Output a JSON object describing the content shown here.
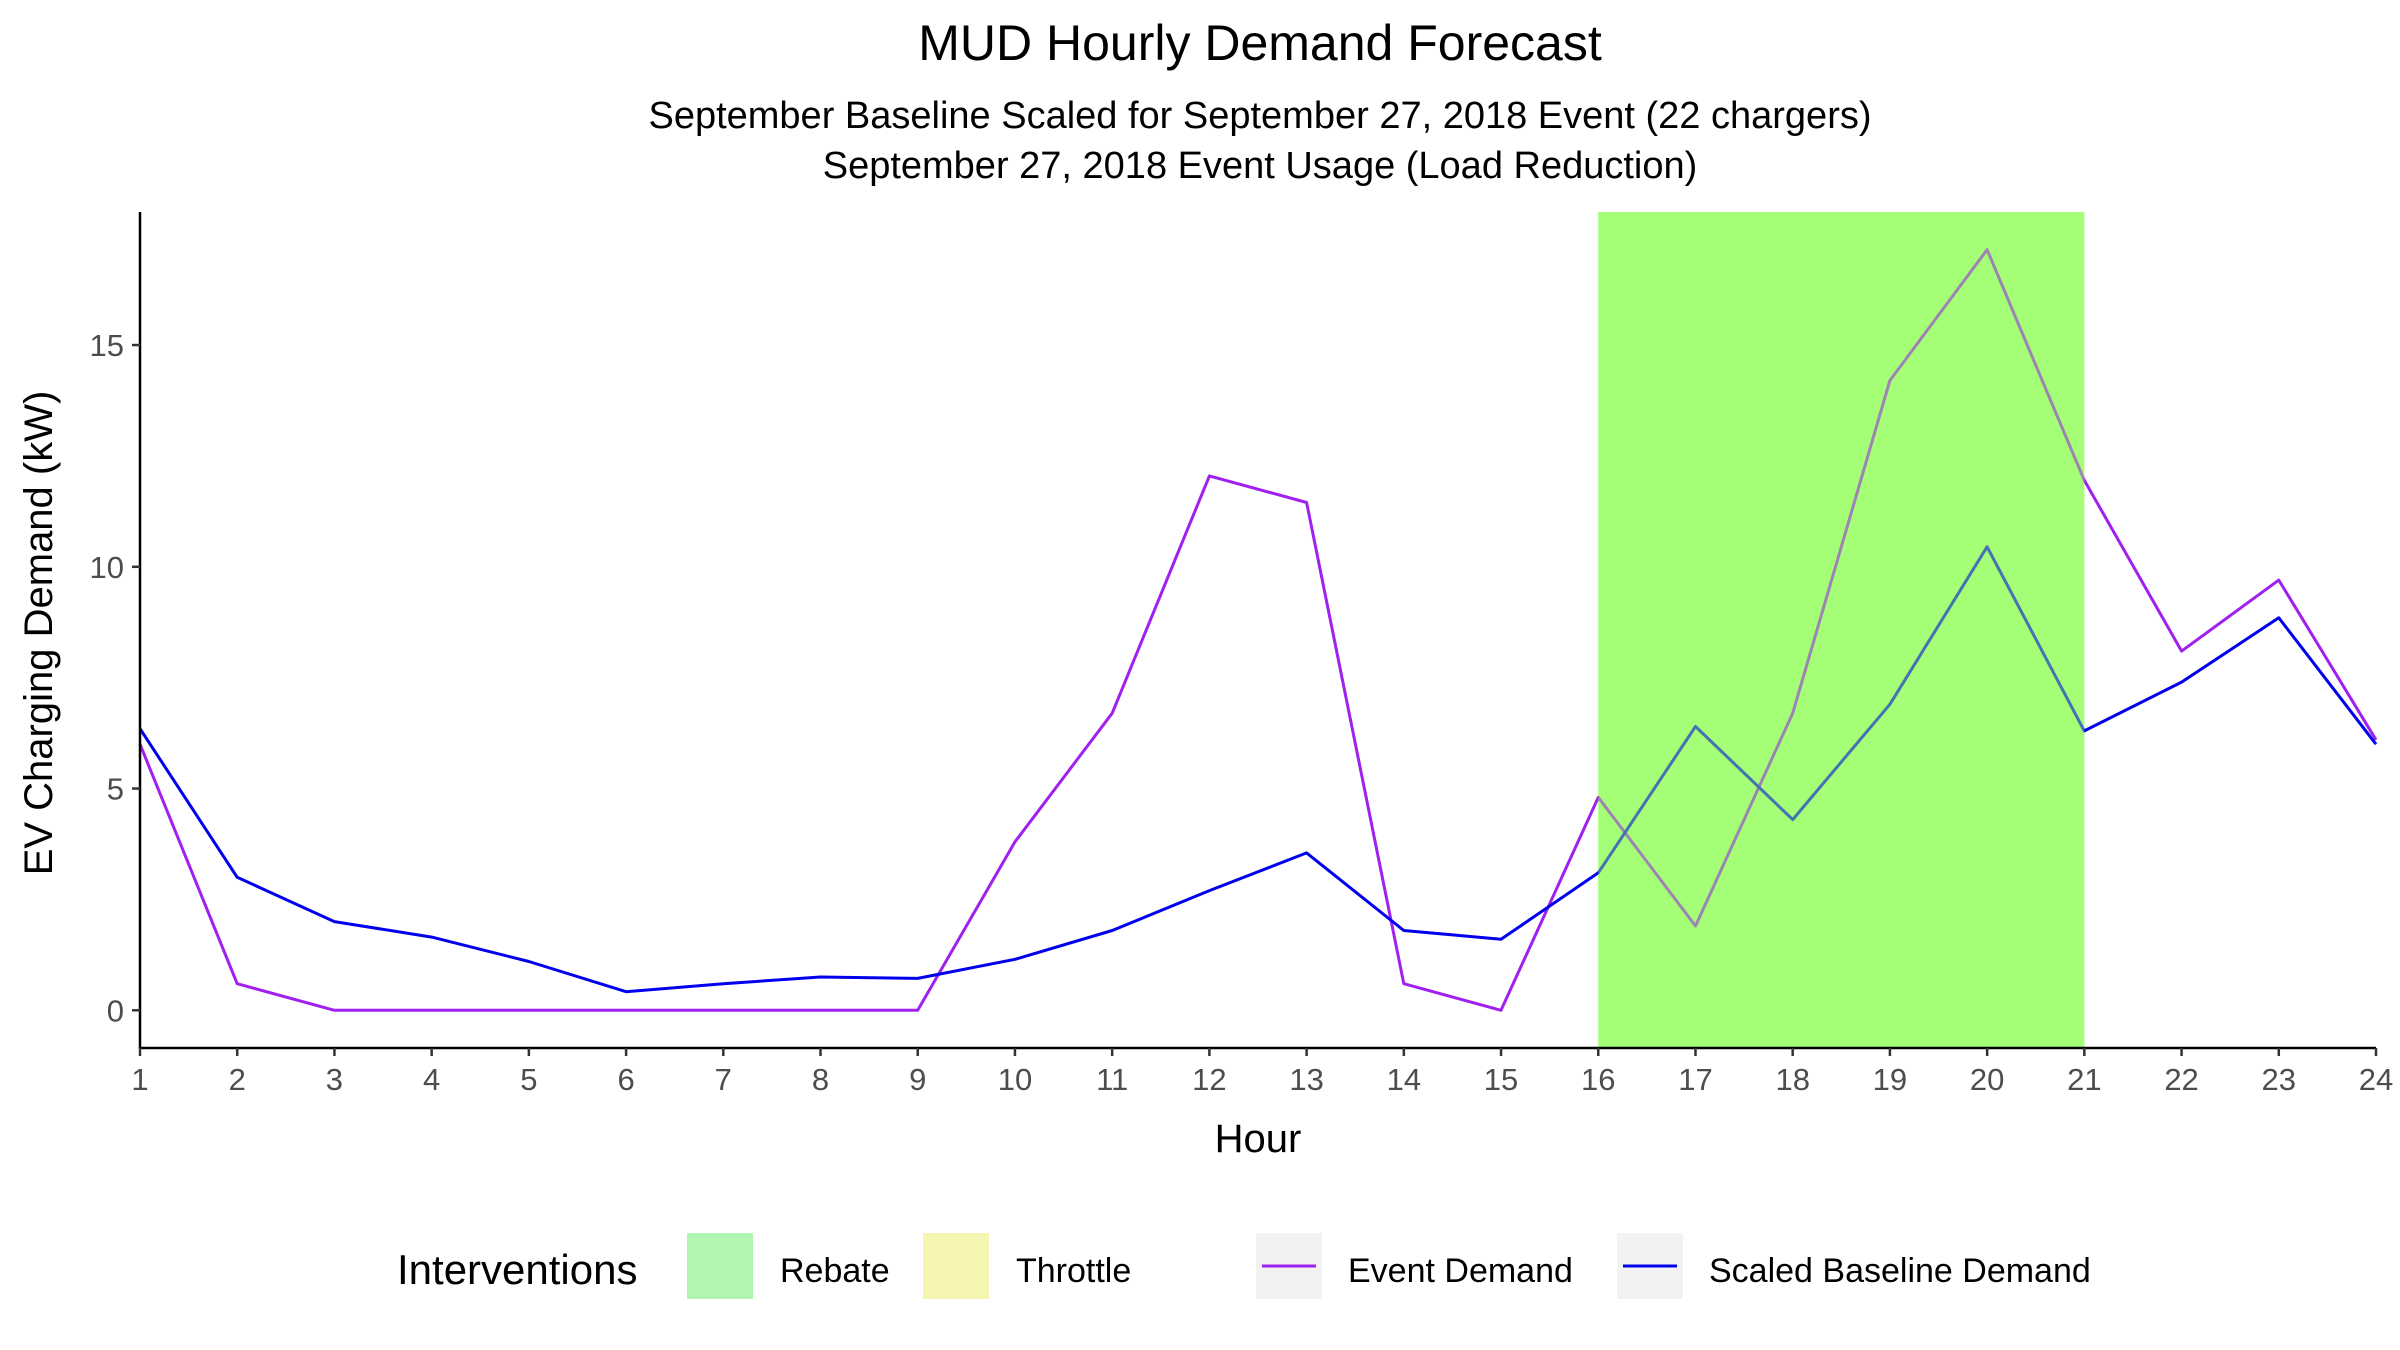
{
  "chart_data": {
    "type": "line",
    "title": "MUD Hourly Demand Forecast",
    "subtitle_lines": [
      "September Baseline Scaled for September 27, 2018 Event (22 chargers)",
      "September 27, 2018 Event Usage (Load Reduction)"
    ],
    "xlabel": "Hour",
    "ylabel": "EV Charging Demand (kW)",
    "x": [
      1,
      2,
      3,
      4,
      5,
      6,
      7,
      8,
      9,
      10,
      11,
      12,
      13,
      14,
      15,
      16,
      17,
      18,
      19,
      20,
      21,
      22,
      23,
      24
    ],
    "xlim": [
      1,
      24
    ],
    "ylim": [
      -0.85,
      18.0
    ],
    "y_ticks": [
      0,
      5,
      10,
      15
    ],
    "x_ticks": [
      1,
      2,
      3,
      4,
      5,
      6,
      7,
      8,
      9,
      10,
      11,
      12,
      13,
      14,
      15,
      16,
      17,
      18,
      19,
      20,
      21,
      22,
      23,
      24
    ],
    "grid": false,
    "series": [
      {
        "name": "Event Demand",
        "color": "#A020F0",
        "values": [
          6.0,
          0.6,
          0.0,
          0.0,
          0.0,
          0.0,
          0.0,
          0.0,
          0.0,
          3.8,
          6.7,
          12.05,
          11.45,
          0.6,
          0.0,
          4.8,
          1.9,
          6.7,
          14.2,
          17.15,
          11.95,
          8.1,
          9.7,
          6.1
        ]
      },
      {
        "name": "Scaled Baseline Demand",
        "color": "#0000EE",
        "values": [
          6.35,
          3.0,
          2.0,
          1.65,
          1.1,
          0.42,
          0.6,
          0.75,
          0.72,
          1.15,
          1.8,
          2.7,
          3.55,
          1.8,
          1.6,
          3.1,
          6.4,
          4.3,
          6.9,
          10.45,
          6.3,
          7.4,
          8.85,
          6.0
        ]
      }
    ],
    "shaded_regions": [
      {
        "intervention": "Rebate",
        "x_start": 16,
        "x_end": 21,
        "color": "#99FF66",
        "opacity": 0.8
      }
    ],
    "legend": {
      "placement": "bottom",
      "title": "Interventions",
      "fill_items": [
        {
          "label": "Rebate",
          "color": "#B1F5B1"
        },
        {
          "label": "Throttle",
          "color": "#F5F5B1"
        }
      ],
      "line_items": [
        {
          "label": "Event Demand",
          "color": "#A020F0"
        },
        {
          "label": "Scaled Baseline Demand",
          "color": "#0000EE"
        }
      ],
      "key_background": "#F2F2F2"
    }
  }
}
